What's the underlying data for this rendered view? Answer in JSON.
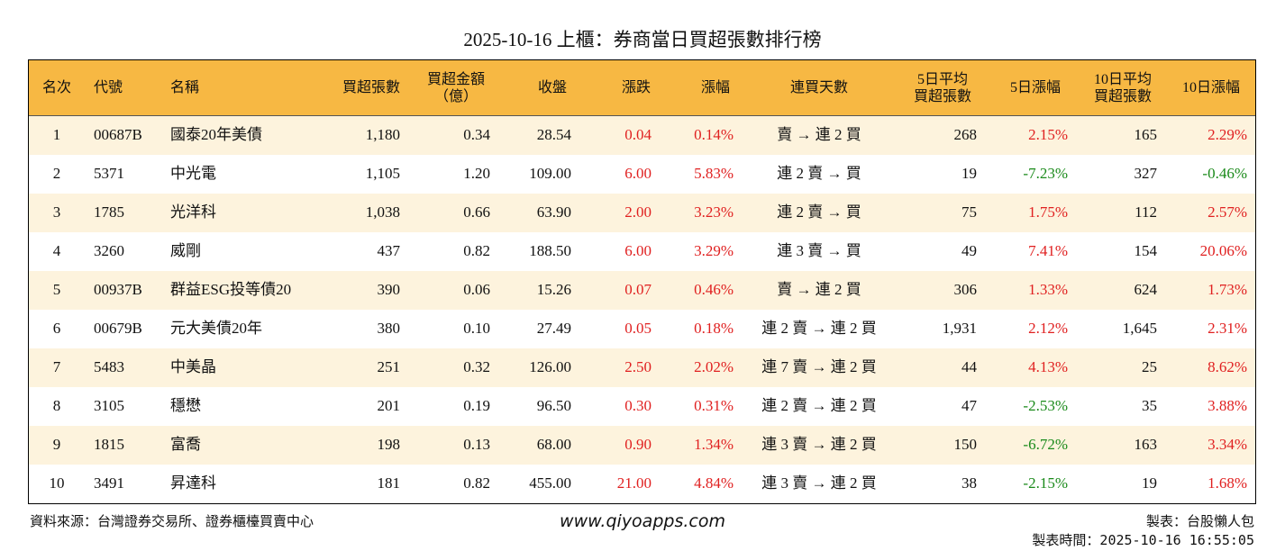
{
  "title": "2025-10-16 上櫃：券商當日買超張數排行榜",
  "table": {
    "header": [
      [
        "名次"
      ],
      [
        "代號"
      ],
      [
        "名稱"
      ],
      [
        "買超張數"
      ],
      [
        "買超金額",
        "（億）"
      ],
      [
        "收盤"
      ],
      [
        "漲跌"
      ],
      [
        "漲幅"
      ],
      [
        "連買天數"
      ],
      [
        "5日平均",
        "買超張數"
      ],
      [
        "5日漲幅"
      ],
      [
        "10日平均",
        "買超張數"
      ],
      [
        "10日漲幅"
      ]
    ],
    "rows": [
      [
        "1",
        "00687B",
        "國泰20年美債",
        "1,180",
        "0.34",
        "28.54",
        "0.04",
        "0.14%",
        "賣 → 連 2 買",
        "268",
        "2.15%",
        "165",
        "2.29%"
      ],
      [
        "2",
        "5371",
        "中光電",
        "1,105",
        "1.20",
        "109.00",
        "6.00",
        "5.83%",
        "連 2 賣 → 買",
        "19",
        "-7.23%",
        "327",
        "-0.46%"
      ],
      [
        "3",
        "1785",
        "光洋科",
        "1,038",
        "0.66",
        "63.90",
        "2.00",
        "3.23%",
        "連 2 賣 → 買",
        "75",
        "1.75%",
        "112",
        "2.57%"
      ],
      [
        "4",
        "3260",
        "威剛",
        "437",
        "0.82",
        "188.50",
        "6.00",
        "3.29%",
        "連 3 賣 → 買",
        "49",
        "7.41%",
        "154",
        "20.06%"
      ],
      [
        "5",
        "00937B",
        "群益ESG投等債20",
        "390",
        "0.06",
        "15.26",
        "0.07",
        "0.46%",
        "賣 → 連 2 買",
        "306",
        "1.33%",
        "624",
        "1.73%"
      ],
      [
        "6",
        "00679B",
        "元大美債20年",
        "380",
        "0.10",
        "27.49",
        "0.05",
        "0.18%",
        "連 2 賣 → 連 2 買",
        "1,931",
        "2.12%",
        "1,645",
        "2.31%"
      ],
      [
        "7",
        "5483",
        "中美晶",
        "251",
        "0.32",
        "126.00",
        "2.50",
        "2.02%",
        "連 7 賣 → 連 2 買",
        "44",
        "4.13%",
        "25",
        "8.62%"
      ],
      [
        "8",
        "3105",
        "穩懋",
        "201",
        "0.19",
        "96.50",
        "0.30",
        "0.31%",
        "連 2 賣 → 連 2 買",
        "47",
        "-2.53%",
        "35",
        "3.88%"
      ],
      [
        "9",
        "1815",
        "富喬",
        "198",
        "0.13",
        "68.00",
        "0.90",
        "1.34%",
        "連 3 賣 → 連 2 買",
        "150",
        "-6.72%",
        "163",
        "3.34%"
      ],
      [
        "10",
        "3491",
        "昇達科",
        "181",
        "0.82",
        "455.00",
        "21.00",
        "4.84%",
        "連 3 賣 → 連 2 買",
        "38",
        "-2.15%",
        "19",
        "1.68%"
      ]
    ]
  },
  "footer": {
    "source": "資料來源：台灣證券交易所、證券櫃檯買賣中心",
    "website": "www.qiyoapps.com",
    "maker": "製表：台股懶人包",
    "time": "製表時間：2025-10-16 16:55:05"
  }
}
